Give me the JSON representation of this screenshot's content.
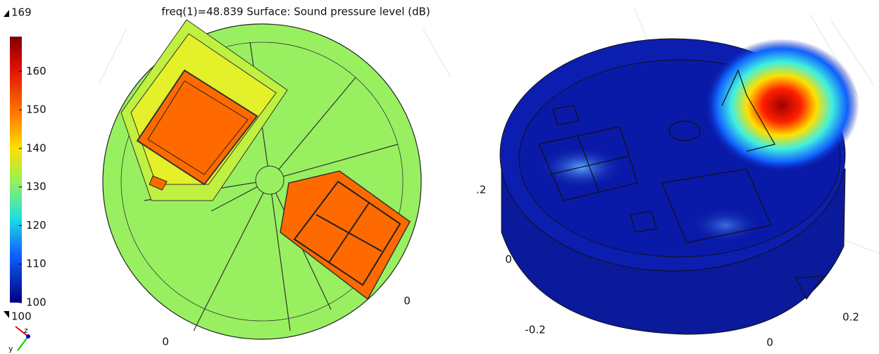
{
  "title": "freq(1)=48.839   Surface: Sound pressure level (dB)",
  "colorbar": {
    "max": 169,
    "min": 100,
    "ticks": [
      160,
      150,
      140,
      130,
      120,
      110,
      100
    ]
  },
  "left_view_axis_labels": [
    "0",
    "0"
  ],
  "right_view_axis_labels": [
    ".2",
    "0",
    "-0.2",
    "0",
    "0.2"
  ],
  "triad_labels": [
    "z",
    "y"
  ]
}
